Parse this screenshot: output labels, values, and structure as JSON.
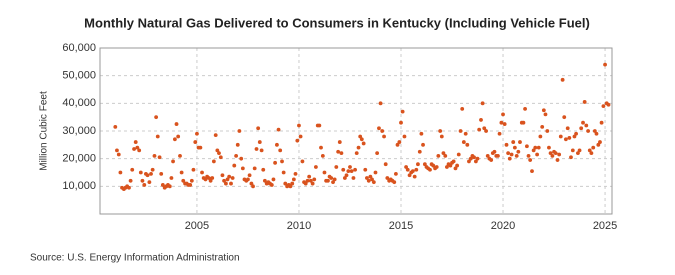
{
  "chart_data": {
    "type": "scatter",
    "title": "Monthly Natural Gas Delivered to Consumers in Kentucky (Including Vehicle Fuel)",
    "y_label": "Million Cubic Feet",
    "source": "Source: U.S. Energy Information Administration",
    "color": "#d9531e",
    "grid": true,
    "xlim": [
      2000.25,
      2025.34
    ],
    "ylim": [
      0,
      60000
    ],
    "xticks": [
      2005,
      2010,
      2015,
      2020,
      2025
    ],
    "yticks": [
      {
        "value": 10000,
        "label": "10,000"
      },
      {
        "value": 20000,
        "label": "20,000"
      },
      {
        "value": 30000,
        "label": "30,000"
      },
      {
        "value": 40000,
        "label": "40,000"
      },
      {
        "value": 50000,
        "label": "50,000"
      },
      {
        "value": 60000,
        "label": "60,000"
      }
    ],
    "x": [
      2001.0,
      2001.08,
      2001.17,
      2001.25,
      2001.33,
      2001.42,
      2001.5,
      2001.58,
      2001.67,
      2001.75,
      2001.83,
      2001.92,
      2002.0,
      2002.08,
      2002.17,
      2002.25,
      2002.33,
      2002.42,
      2002.5,
      2002.58,
      2002.67,
      2002.75,
      2002.83,
      2002.92,
      2003.0,
      2003.08,
      2003.17,
      2003.25,
      2003.33,
      2003.42,
      2003.5,
      2003.58,
      2003.67,
      2003.75,
      2003.83,
      2003.92,
      2004.0,
      2004.08,
      2004.17,
      2004.25,
      2004.33,
      2004.42,
      2004.5,
      2004.58,
      2004.67,
      2004.75,
      2004.83,
      2004.92,
      2005.0,
      2005.08,
      2005.17,
      2005.25,
      2005.33,
      2005.42,
      2005.5,
      2005.58,
      2005.67,
      2005.75,
      2005.83,
      2005.92,
      2006.0,
      2006.08,
      2006.17,
      2006.25,
      2006.33,
      2006.42,
      2006.5,
      2006.58,
      2006.67,
      2006.75,
      2006.83,
      2006.92,
      2007.0,
      2007.08,
      2007.17,
      2007.25,
      2007.33,
      2007.42,
      2007.5,
      2007.58,
      2007.67,
      2007.75,
      2007.83,
      2007.92,
      2008.0,
      2008.08,
      2008.17,
      2008.25,
      2008.33,
      2008.42,
      2008.5,
      2008.58,
      2008.67,
      2008.75,
      2008.83,
      2008.92,
      2009.0,
      2009.08,
      2009.17,
      2009.25,
      2009.33,
      2009.42,
      2009.5,
      2009.58,
      2009.67,
      2009.75,
      2009.83,
      2009.92,
      2010.0,
      2010.08,
      2010.17,
      2010.25,
      2010.33,
      2010.42,
      2010.5,
      2010.58,
      2010.67,
      2010.75,
      2010.83,
      2010.92,
      2011.0,
      2011.08,
      2011.17,
      2011.25,
      2011.33,
      2011.42,
      2011.5,
      2011.58,
      2011.67,
      2011.75,
      2011.83,
      2011.92,
      2012.0,
      2012.08,
      2012.17,
      2012.25,
      2012.33,
      2012.42,
      2012.5,
      2012.58,
      2012.67,
      2012.75,
      2012.83,
      2012.92,
      2013.0,
      2013.08,
      2013.17,
      2013.25,
      2013.33,
      2013.42,
      2013.5,
      2013.58,
      2013.67,
      2013.75,
      2013.83,
      2013.92,
      2014.0,
      2014.08,
      2014.17,
      2014.25,
      2014.33,
      2014.42,
      2014.5,
      2014.58,
      2014.67,
      2014.75,
      2014.83,
      2014.92,
      2015.0,
      2015.08,
      2015.17,
      2015.25,
      2015.33,
      2015.42,
      2015.5,
      2015.58,
      2015.67,
      2015.75,
      2015.83,
      2015.92,
      2016.0,
      2016.08,
      2016.17,
      2016.25,
      2016.33,
      2016.42,
      2016.5,
      2016.58,
      2016.67,
      2016.75,
      2016.83,
      2016.92,
      2017.0,
      2017.08,
      2017.17,
      2017.25,
      2017.33,
      2017.42,
      2017.5,
      2017.58,
      2017.67,
      2017.75,
      2017.83,
      2017.92,
      2018.0,
      2018.08,
      2018.17,
      2018.25,
      2018.33,
      2018.42,
      2018.5,
      2018.58,
      2018.67,
      2018.75,
      2018.83,
      2018.92,
      2019.0,
      2019.08,
      2019.17,
      2019.25,
      2019.33,
      2019.42,
      2019.5,
      2019.58,
      2019.67,
      2019.75,
      2019.83,
      2019.92,
      2020.0,
      2020.08,
      2020.17,
      2020.25,
      2020.33,
      2020.42,
      2020.5,
      2020.58,
      2020.67,
      2020.75,
      2020.83,
      2020.92,
      2021.0,
      2021.08,
      2021.17,
      2021.25,
      2021.33,
      2021.42,
      2021.5,
      2021.58,
      2021.67,
      2021.75,
      2021.83,
      2021.92,
      2022.0,
      2022.08,
      2022.17,
      2022.25,
      2022.33,
      2022.42,
      2022.5,
      2022.58,
      2022.67,
      2022.75,
      2022.83,
      2022.92,
      2023.0,
      2023.08,
      2023.17,
      2023.25,
      2023.33,
      2023.42,
      2023.5,
      2023.58,
      2023.67,
      2023.75,
      2023.83,
      2023.92,
      2024.0,
      2024.08,
      2024.17,
      2024.25,
      2024.33,
      2024.42,
      2024.5,
      2024.58,
      2024.67,
      2024.75,
      2024.83,
      2024.92,
      2025.0,
      2025.08,
      2025.17
    ],
    "values": [
      31500,
      23000,
      21500,
      15000,
      9500,
      9000,
      9500,
      10000,
      9500,
      12000,
      16000,
      23500,
      26000,
      24000,
      23000,
      15000,
      12000,
      10500,
      14500,
      14000,
      11500,
      14500,
      16000,
      21000,
      35000,
      28000,
      20500,
      14500,
      10500,
      9500,
      10000,
      10500,
      10000,
      13000,
      19000,
      27000,
      32500,
      28000,
      21000,
      15000,
      12000,
      11000,
      11000,
      10500,
      10500,
      12000,
      16000,
      26000,
      29000,
      24000,
      24000,
      15000,
      13000,
      12500,
      13500,
      13000,
      12000,
      13000,
      19000,
      28500,
      23000,
      22000,
      20500,
      14000,
      12000,
      11000,
      12500,
      13500,
      11000,
      13000,
      17500,
      21000,
      25000,
      30000,
      20000,
      16500,
      12500,
      12000,
      12500,
      14000,
      11000,
      10000,
      16500,
      23500,
      31000,
      26000,
      23000,
      16000,
      12000,
      11000,
      11500,
      11000,
      10500,
      12500,
      18500,
      25000,
      30500,
      23000,
      19000,
      15000,
      11000,
      10000,
      10500,
      10000,
      11000,
      12500,
      14500,
      26500,
      32000,
      28000,
      19000,
      11500,
      11000,
      12000,
      13500,
      12000,
      11000,
      12500,
      17000,
      32000,
      32000,
      24000,
      21000,
      15000,
      12000,
      12000,
      13500,
      13000,
      11500,
      12500,
      17000,
      22500,
      26000,
      22000,
      16000,
      13000,
      14000,
      15500,
      17000,
      15500,
      13000,
      16000,
      22000,
      24000,
      28000,
      27000,
      25500,
      16000,
      13000,
      12000,
      13500,
      12500,
      11500,
      15000,
      22000,
      31000,
      40000,
      30000,
      28000,
      18000,
      13000,
      12000,
      12500,
      12000,
      11500,
      14500,
      25000,
      26000,
      33000,
      37000,
      28000,
      17000,
      16000,
      14000,
      15000,
      15500,
      13500,
      16000,
      18000,
      22500,
      29000,
      25000,
      18000,
      17000,
      16500,
      16000,
      18000,
      17500,
      16500,
      17000,
      21000,
      30000,
      28000,
      22000,
      21000,
      17000,
      18000,
      17500,
      18500,
      19000,
      16500,
      17500,
      21500,
      30000,
      38000,
      26000,
      29000,
      25000,
      19000,
      20000,
      21000,
      20500,
      19000,
      20000,
      30500,
      34000,
      40000,
      31000,
      30000,
      21000,
      20000,
      19500,
      22000,
      22500,
      21000,
      21000,
      29000,
      33000,
      36000,
      32500,
      25000,
      22000,
      20000,
      21500,
      26000,
      24000,
      21000,
      22500,
      26000,
      33000,
      33000,
      38000,
      24500,
      21000,
      19500,
      15500,
      23000,
      24000,
      21500,
      24000,
      28000,
      31500,
      37500,
      36000,
      30000,
      24000,
      22000,
      21000,
      22500,
      22000,
      19500,
      21500,
      28000,
      48500,
      35000,
      27000,
      31000,
      27500,
      20500,
      23000,
      28000,
      29000,
      22000,
      23000,
      31000,
      33000,
      40500,
      32000,
      30000,
      23000,
      22000,
      24000,
      30000,
      29000,
      25000,
      26000,
      33000,
      39000,
      54000,
      40000,
      39500
    ]
  }
}
